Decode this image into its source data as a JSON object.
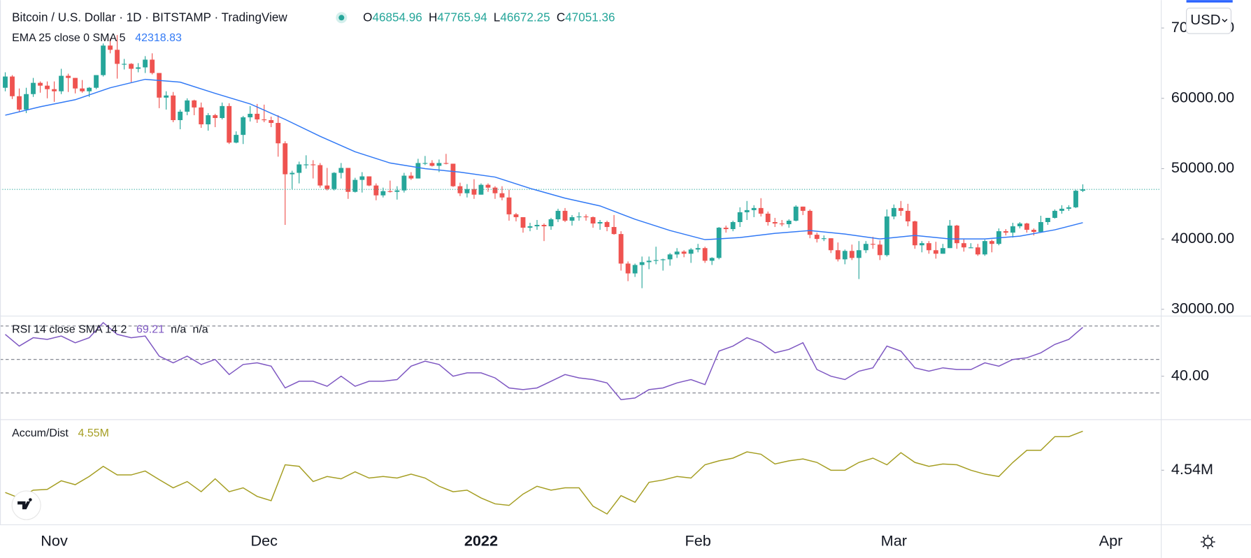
{
  "toolbar": {
    "currency": "USD"
  },
  "chart_data": [
    {
      "type": "candlestick",
      "title": "Bitcoin / U.S. Dollar · 1D · BITSTAMP · TradingView",
      "legend": [
        [
          "O",
          "46854.96"
        ],
        [
          "H",
          "47765.94"
        ],
        [
          "L",
          "46672.25"
        ],
        [
          "C",
          "47051.36"
        ]
      ],
      "color_up": "#26a69a",
      "color_down": "#ef5350",
      "open": [
        61500,
        63100,
        60300,
        58400,
        60600,
        62200,
        61800,
        61300,
        61000,
        63200,
        62900,
        61400,
        61000,
        61500,
        63300,
        67500,
        66900,
        64900,
        64900,
        64200,
        64400,
        65500,
        63600,
        60100,
        60400,
        56900,
        58100,
        59700,
        58700,
        56300,
        57600,
        57200,
        58900,
        53700,
        54800,
        57300,
        57800,
        57000,
        56900,
        56500,
        53600,
        49200,
        49400,
        50600,
        50600,
        50500,
        47600,
        47100,
        49400,
        50100,
        46700,
        48400,
        48900,
        47600,
        46200,
        46800,
        46700,
        46900,
        49000,
        48600,
        50800,
        50800,
        50400,
        50800,
        50700,
        47500,
        46500,
        47100,
        46300,
        47700,
        47300,
        46500,
        45900,
        43500,
        43100,
        41600,
        41800,
        42000,
        41800,
        42800,
        44000,
        42600,
        43100,
        43200,
        43100,
        42200,
        42400,
        41700,
        40700,
        36500,
        35100,
        36300,
        36700,
        36900,
        37000,
        37100,
        37800,
        38200,
        37900,
        38500,
        38700,
        36900,
        37300,
        41600,
        41400,
        42400,
        43800,
        44100,
        44400,
        43600,
        42400,
        42200,
        42100,
        42600,
        44600,
        44000,
        40600,
        40000,
        40100,
        38400,
        37100,
        38300,
        37300,
        38400,
        39300,
        39200,
        37700,
        43200,
        44400,
        44000,
        42500,
        39100,
        39400,
        38400,
        37900,
        38700,
        41900,
        39400,
        38800,
        38800,
        37800,
        39700,
        39300,
        41100,
        40900,
        41800,
        42200,
        41300,
        41000,
        42400,
        43000,
        44000,
        44300,
        44500,
        46854.96
      ],
      "high": [
        63700,
        63300,
        61400,
        61500,
        62900,
        62400,
        62400,
        62400,
        64200,
        63500,
        62900,
        62600,
        61600,
        63300,
        67800,
        68500,
        69000,
        65600,
        65000,
        65000,
        66000,
        66400,
        63600,
        61000,
        60900,
        58400,
        60000,
        59800,
        59400,
        57900,
        57800,
        59400,
        59300,
        55300,
        57500,
        58900,
        59200,
        59100,
        57400,
        57600,
        53900,
        49700,
        51000,
        51900,
        51200,
        50800,
        50100,
        49500,
        50800,
        50100,
        48700,
        49500,
        48900,
        47900,
        47300,
        48300,
        47500,
        49400,
        49500,
        51400,
        51800,
        51200,
        51300,
        52100,
        50700,
        48000,
        47800,
        48500,
        47900,
        47900,
        47500,
        47500,
        47000,
        43700,
        43100,
        42300,
        42700,
        42200,
        43000,
        44300,
        44400,
        43400,
        43800,
        43500,
        43200,
        42700,
        42600,
        43400,
        41100,
        36800,
        36500,
        37500,
        37500,
        38900,
        37200,
        38000,
        38700,
        38400,
        38700,
        39300,
        38900,
        37400,
        41700,
        41900,
        42600,
        44500,
        45400,
        44800,
        45800,
        43900,
        43000,
        42700,
        42800,
        44800,
        44600,
        44200,
        40900,
        40500,
        40100,
        39500,
        38500,
        39200,
        39700,
        39700,
        40300,
        39800,
        44200,
        44900,
        45400,
        45000,
        42600,
        39700,
        39700,
        39600,
        39300,
        42700,
        42000,
        40000,
        39400,
        39300,
        39900,
        39900,
        41500,
        41400,
        42300,
        42400,
        42300,
        41500,
        43300,
        43000,
        44200,
        44800,
        44800,
        47000,
        47765.94
      ],
      "low": [
        61000,
        59900,
        58100,
        57900,
        60200,
        60800,
        60000,
        59500,
        60600,
        60900,
        60700,
        60800,
        60200,
        61300,
        63100,
        66400,
        62800,
        64100,
        62300,
        63700,
        63600,
        63400,
        58600,
        58400,
        56600,
        55600,
        57600,
        57600,
        55800,
        55400,
        55900,
        57000,
        53500,
        53600,
        53500,
        56700,
        56500,
        56600,
        55900,
        51700,
        42000,
        47100,
        47900,
        50000,
        48600,
        47300,
        46900,
        46900,
        48600,
        45700,
        46600,
        46600,
        47500,
        45500,
        45900,
        46600,
        45600,
        46600,
        48400,
        48600,
        50500,
        50300,
        49500,
        50600,
        47400,
        46100,
        45900,
        45700,
        46300,
        46700,
        45700,
        45500,
        42600,
        42500,
        40900,
        41100,
        41300,
        39700,
        41300,
        42400,
        42400,
        41900,
        42600,
        42600,
        41600,
        41300,
        41100,
        40600,
        35500,
        34000,
        34600,
        33000,
        35700,
        36400,
        35500,
        36200,
        37300,
        37400,
        36600,
        38100,
        36600,
        36300,
        37100,
        40900,
        41100,
        41700,
        42700,
        43100,
        43200,
        41900,
        41700,
        41800,
        41600,
        42500,
        43400,
        40100,
        39500,
        39700,
        38000,
        36800,
        36400,
        37000,
        34300,
        38000,
        38600,
        37000,
        37500,
        42800,
        43300,
        41800,
        38600,
        38100,
        37900,
        37200,
        37900,
        38700,
        38600,
        38200,
        38700,
        37600,
        37600,
        38100,
        39100,
        40500,
        40200,
        41500,
        40900,
        40500,
        40900,
        42000,
        42900,
        43600,
        44000,
        44400,
        46672.25
      ],
      "close": [
        63100,
        60300,
        58400,
        60600,
        62200,
        61800,
        61300,
        61000,
        63200,
        62900,
        61400,
        61000,
        61500,
        63300,
        67500,
        66900,
        64900,
        64900,
        64200,
        64400,
        65500,
        63600,
        60100,
        60400,
        56900,
        58100,
        59700,
        58700,
        56300,
        57600,
        57200,
        58900,
        53700,
        54800,
        57300,
        57800,
        57000,
        56900,
        56500,
        53600,
        49200,
        49400,
        50600,
        50600,
        50500,
        47600,
        47100,
        49400,
        50100,
        46700,
        48400,
        48900,
        47600,
        46200,
        46800,
        46700,
        46900,
        49000,
        48600,
        50800,
        50800,
        50400,
        50800,
        50700,
        47500,
        46500,
        47100,
        46300,
        47700,
        47300,
        46500,
        45900,
        43500,
        43100,
        41600,
        41800,
        42000,
        41800,
        42800,
        44000,
        42600,
        43100,
        43200,
        43100,
        42200,
        42400,
        41700,
        40700,
        36500,
        35100,
        36300,
        36700,
        36900,
        37000,
        37100,
        37800,
        38200,
        37900,
        38500,
        38700,
        36900,
        37300,
        41600,
        41400,
        42400,
        43800,
        44100,
        44400,
        43600,
        42400,
        42200,
        42100,
        42600,
        44600,
        44000,
        40600,
        40000,
        40100,
        38400,
        37100,
        38300,
        37300,
        38400,
        39300,
        39200,
        37700,
        43200,
        44400,
        44000,
        42500,
        39100,
        39400,
        38400,
        37900,
        38700,
        41900,
        39400,
        38800,
        38800,
        37800,
        39700,
        39300,
        41100,
        40900,
        41800,
        42200,
        41300,
        41000,
        42400,
        43000,
        44000,
        44300,
        44500,
        46855,
        47051.36
      ],
      "overlay": {
        "name": "EMA 25 close 0 SMA 5",
        "value_label": "42318.83",
        "color": "#3179f5",
        "x": [
          0,
          5,
          10,
          15,
          20,
          25,
          30,
          35,
          40,
          45,
          50,
          55,
          60,
          65,
          70,
          75,
          80,
          85,
          90,
          95,
          100,
          105,
          110,
          115,
          120,
          125,
          130,
          135,
          140,
          145,
          150,
          154
        ],
        "values": [
          57600,
          58800,
          59800,
          61500,
          62700,
          62300,
          60700,
          59200,
          57000,
          54600,
          52400,
          50800,
          50000,
          49500,
          48800,
          47200,
          45800,
          44700,
          42800,
          41200,
          39900,
          40200,
          40800,
          41200,
          40700,
          40000,
          40500,
          40000,
          40000,
          40400,
          41300,
          42318.83
        ]
      },
      "xlim": [
        -0.75,
        165.15
      ],
      "xticks": [
        {
          "value": 7,
          "label": "Nov"
        },
        {
          "value": 37,
          "label": "Dec"
        },
        {
          "value": 68,
          "label": "2022",
          "major": true
        },
        {
          "value": 99,
          "label": "Feb"
        },
        {
          "value": 127,
          "label": "Mar"
        },
        {
          "value": 158,
          "label": "Apr"
        }
      ],
      "ylim": [
        29094,
        73964
      ],
      "yticks": [
        {
          "value": 30000,
          "label": "30000.00"
        },
        {
          "value": 40000,
          "label": "40000.00"
        },
        {
          "value": 50000,
          "label": "50000.00"
        },
        {
          "value": 60000,
          "label": "60000.00"
        },
        {
          "value": 70000,
          "label": "70000.00"
        }
      ]
    },
    {
      "type": "line",
      "name": "RSI 14 close SMA 14 2",
      "legend_values": [
        "69.21",
        "n/a",
        "n/a"
      ],
      "color": "#7e57c2",
      "x": [
        0,
        2,
        4,
        6,
        8,
        10,
        12,
        14,
        16,
        18,
        20,
        22,
        24,
        26,
        28,
        30,
        32,
        34,
        36,
        38,
        40,
        42,
        44,
        46,
        48,
        50,
        52,
        54,
        56,
        58,
        60,
        62,
        64,
        66,
        68,
        70,
        72,
        74,
        76,
        78,
        80,
        82,
        84,
        86,
        88,
        90,
        92,
        94,
        96,
        98,
        100,
        102,
        104,
        106,
        108,
        110,
        112,
        114,
        116,
        118,
        120,
        122,
        124,
        126,
        128,
        130,
        132,
        134,
        136,
        138,
        140,
        142,
        144,
        146,
        148,
        150,
        152,
        154
      ],
      "values": [
        65,
        58,
        63,
        62,
        64,
        60,
        63,
        72,
        65,
        63,
        64,
        52,
        48,
        52,
        47,
        50,
        41,
        47,
        48,
        46,
        33,
        37,
        37,
        34,
        40,
        34,
        37,
        37,
        38,
        46,
        49,
        47,
        40,
        42,
        42,
        39,
        33,
        32,
        33,
        37,
        41,
        39,
        38,
        36,
        26,
        27,
        32,
        33,
        36,
        38,
        35,
        55,
        58,
        63,
        60,
        54,
        56,
        60,
        44,
        40,
        38,
        43,
        45,
        58,
        55,
        45,
        43,
        45,
        44,
        44,
        48,
        46,
        50,
        51,
        54,
        59,
        62,
        69.21
      ],
      "bands": [
        70,
        50,
        30
      ],
      "ylim": [
        14.3,
        75.7
      ],
      "yticks": [
        {
          "value": 40,
          "label": "40.00"
        }
      ]
    },
    {
      "type": "line",
      "name": "Accum/Dist",
      "legend_values": [
        "4.55M"
      ],
      "color": "#a59e22",
      "x": [
        0,
        2,
        4,
        6,
        8,
        10,
        12,
        14,
        16,
        18,
        20,
        22,
        24,
        26,
        28,
        30,
        32,
        34,
        36,
        38,
        40,
        42,
        44,
        46,
        48,
        50,
        52,
        54,
        56,
        58,
        60,
        62,
        64,
        66,
        68,
        70,
        72,
        74,
        76,
        78,
        80,
        82,
        84,
        86,
        88,
        90,
        92,
        94,
        96,
        98,
        100,
        102,
        104,
        106,
        108,
        110,
        112,
        114,
        116,
        118,
        120,
        122,
        124,
        126,
        128,
        130,
        132,
        134,
        136,
        138,
        140,
        142,
        144,
        146,
        148,
        150,
        152,
        154
      ],
      "values": [
        4534300,
        4532900,
        4534900,
        4535100,
        4537300,
        4536300,
        4538400,
        4541000,
        4538800,
        4538800,
        4539800,
        4537600,
        4535500,
        4537100,
        4534500,
        4537800,
        4534500,
        4535500,
        4533300,
        4532200,
        4541400,
        4541000,
        4537100,
        4538400,
        4537800,
        4539600,
        4538000,
        4538400,
        4538000,
        4539000,
        4538000,
        4535900,
        4534500,
        4534900,
        4532900,
        4531400,
        4531000,
        4533900,
        4535900,
        4534900,
        4535500,
        4535500,
        4530800,
        4528800,
        4533500,
        4531800,
        4536900,
        4537500,
        4538400,
        4538000,
        4541400,
        4542400,
        4543100,
        4544700,
        4544100,
        4541600,
        4542400,
        4542900,
        4542000,
        4540000,
        4540000,
        4542000,
        4543100,
        4541400,
        4544500,
        4542000,
        4541000,
        4541600,
        4541400,
        4540000,
        4539000,
        4538400,
        4542000,
        4545100,
        4545100,
        4548600,
        4548600,
        4550000
      ],
      "ylim": [
        4526130,
        4552850
      ],
      "yticks": [
        {
          "value": 4540000,
          "label": "4.54M"
        }
      ]
    }
  ]
}
